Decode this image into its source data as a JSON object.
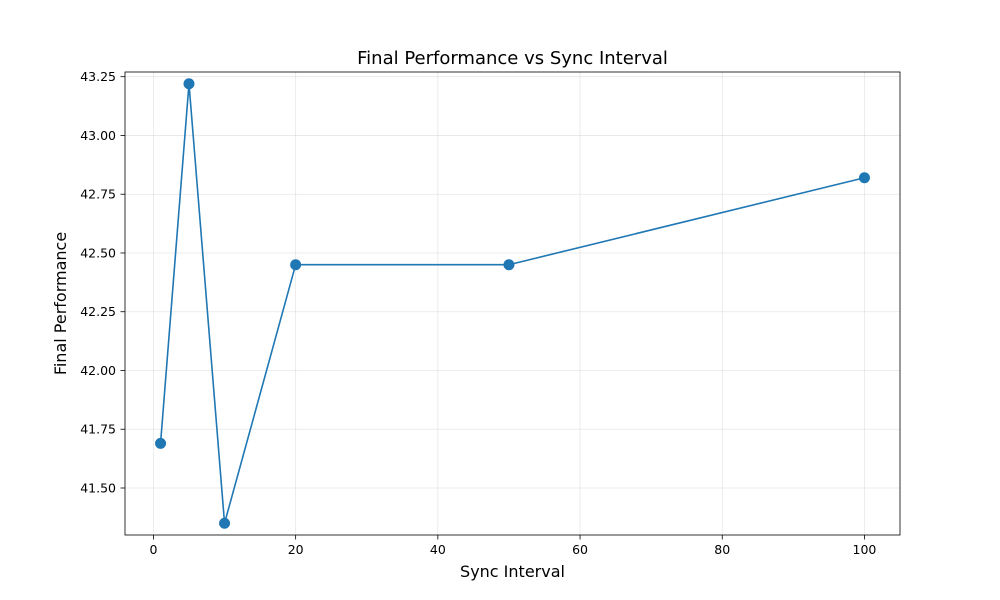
{
  "chart_data": {
    "type": "line",
    "title": "Final Performance vs Sync Interval",
    "xlabel": "Sync Interval",
    "ylabel": "Final Performance",
    "xlim": [
      -4,
      105
    ],
    "ylim": [
      41.3,
      43.27
    ],
    "xticks": [
      0,
      20,
      40,
      60,
      80,
      100
    ],
    "yticks": [
      41.5,
      41.75,
      42.0,
      42.25,
      42.5,
      42.75,
      43.0,
      43.25
    ],
    "xtick_labels": [
      "0",
      "20",
      "40",
      "60",
      "80",
      "100"
    ],
    "ytick_labels": [
      "41.50",
      "41.75",
      "42.00",
      "42.25",
      "42.50",
      "42.75",
      "43.00",
      "43.25"
    ],
    "grid": true,
    "series": [
      {
        "color": "#1f77b4",
        "marker": "circle",
        "x": [
          1,
          5,
          10,
          20,
          50,
          100
        ],
        "y": [
          41.69,
          43.22,
          41.35,
          42.45,
          42.45,
          42.82
        ]
      }
    ]
  }
}
